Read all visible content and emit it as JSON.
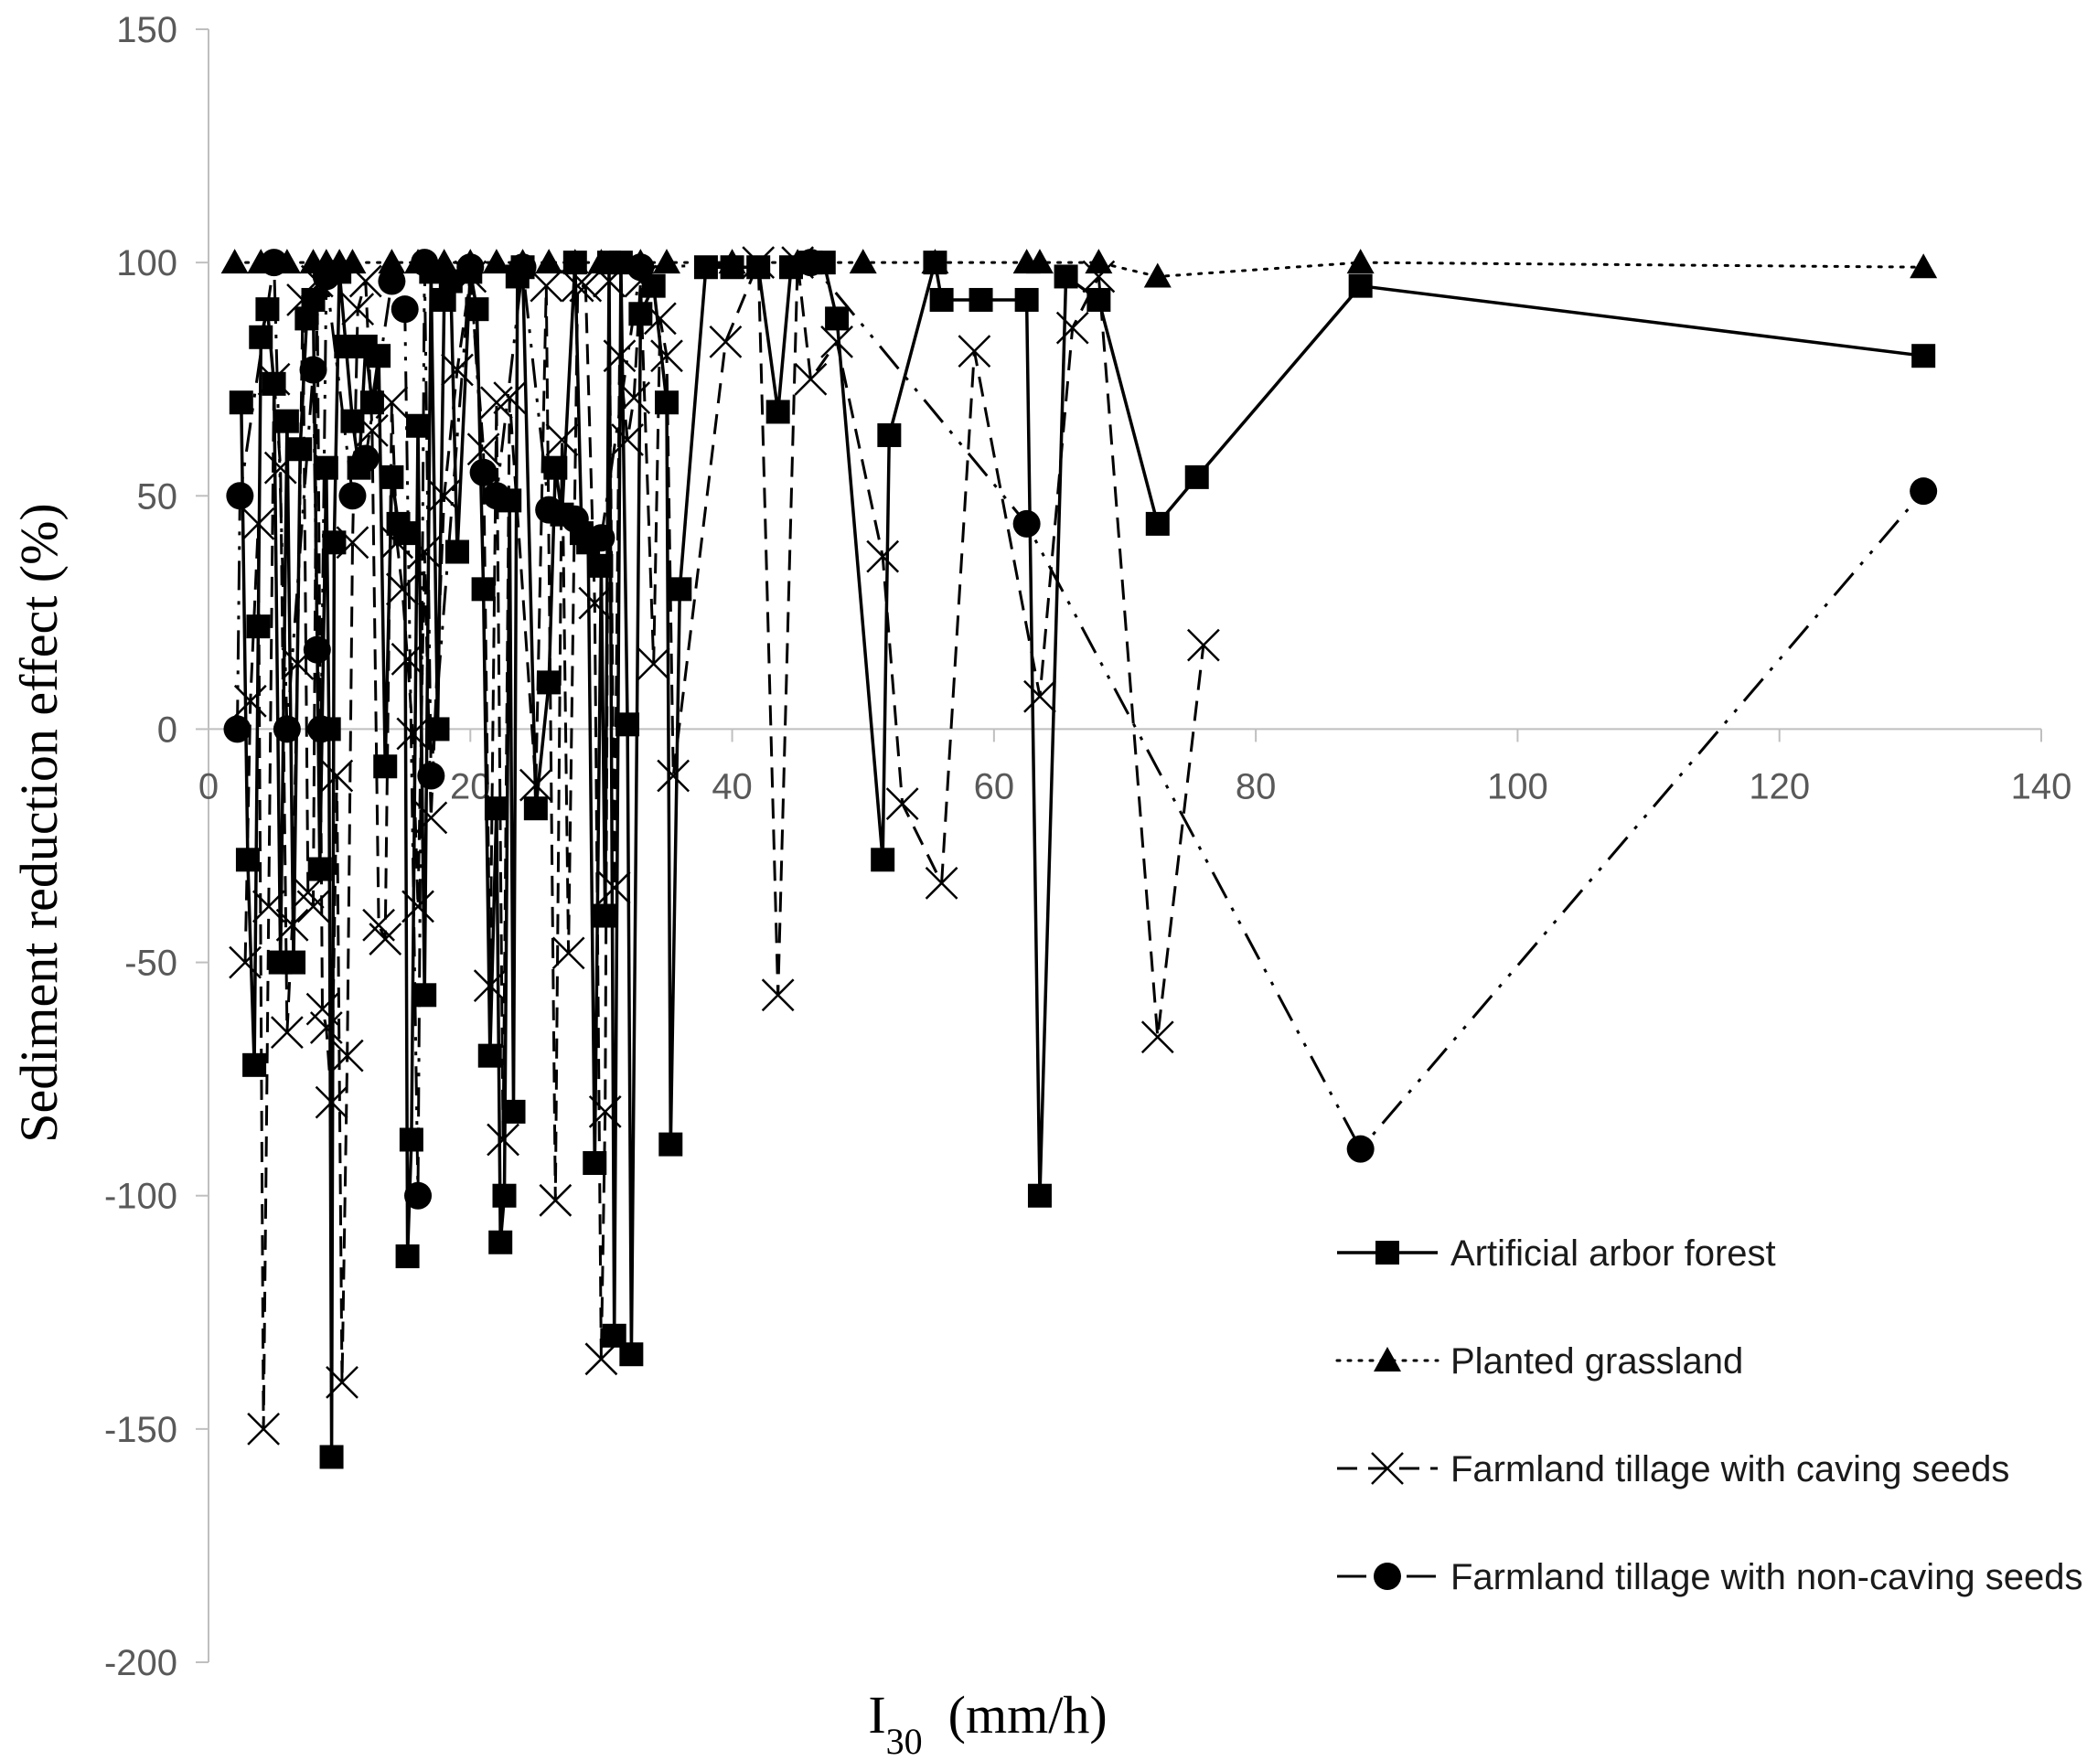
{
  "chart_data": {
    "type": "line",
    "xlabel": "I30",
    "xlabel_main": "I",
    "xlabel_sub": "30",
    "xlabel_unit": "(mm/h)",
    "ylabel": "Sediment reduction effect (%)",
    "xlim": [
      0,
      140
    ],
    "ylim": [
      -200,
      150
    ],
    "xticks": [
      0,
      20,
      40,
      60,
      80,
      100,
      120,
      140
    ],
    "yticks": [
      150,
      100,
      50,
      0,
      -50,
      -100,
      -150,
      -200
    ],
    "grid": false,
    "legend": "bottom-right",
    "series": [
      {
        "name": "Artificial arbor forest",
        "marker": "square",
        "dash": "solid",
        "points": [
          [
            2.5,
            70
          ],
          [
            3,
            -28
          ],
          [
            3.5,
            -72
          ],
          [
            3.8,
            22
          ],
          [
            4,
            84
          ],
          [
            4.5,
            90
          ],
          [
            5,
            74
          ],
          [
            5.5,
            -50
          ],
          [
            6,
            66
          ],
          [
            6.5,
            -50
          ],
          [
            7,
            60
          ],
          [
            7.5,
            88
          ],
          [
            8,
            92
          ],
          [
            8.5,
            -30
          ],
          [
            9,
            56
          ],
          [
            9.2,
            0
          ],
          [
            9.4,
            -156
          ],
          [
            9.6,
            40
          ],
          [
            10,
            98
          ],
          [
            10.5,
            82
          ],
          [
            11,
            66
          ],
          [
            11.5,
            56
          ],
          [
            12,
            82
          ],
          [
            12.5,
            70
          ],
          [
            13,
            80
          ],
          [
            13.5,
            -8
          ],
          [
            14,
            54
          ],
          [
            14.5,
            44
          ],
          [
            15,
            42
          ],
          [
            15.2,
            -113
          ],
          [
            15.5,
            -88
          ],
          [
            16,
            65
          ],
          [
            16.5,
            -57
          ],
          [
            17,
            98
          ],
          [
            17.5,
            0
          ],
          [
            18,
            92
          ],
          [
            18.5,
            96
          ],
          [
            19,
            38
          ],
          [
            20,
            98
          ],
          [
            20.5,
            90
          ],
          [
            21,
            30
          ],
          [
            21.5,
            -70
          ],
          [
            22,
            -17
          ],
          [
            22.3,
            -110
          ],
          [
            22.6,
            -100
          ],
          [
            23,
            49
          ],
          [
            23.3,
            -82
          ],
          [
            23.6,
            97
          ],
          [
            24,
            99
          ],
          [
            25,
            -17
          ],
          [
            26,
            10
          ],
          [
            26.5,
            56
          ],
          [
            27,
            46
          ],
          [
            28,
            100
          ],
          [
            28.5,
            42
          ],
          [
            29,
            40
          ],
          [
            29.5,
            -93
          ],
          [
            30,
            35
          ],
          [
            30.3,
            -40
          ],
          [
            30.6,
            100
          ],
          [
            31,
            -130
          ],
          [
            31.5,
            100
          ],
          [
            32,
            1
          ],
          [
            32.3,
            -134
          ],
          [
            33,
            89
          ],
          [
            34,
            95
          ],
          [
            35,
            70
          ],
          [
            35.3,
            -89
          ],
          [
            36,
            30
          ],
          [
            38,
            99
          ],
          [
            40,
            99
          ],
          [
            42,
            99
          ],
          [
            43.5,
            68
          ],
          [
            44.5,
            99
          ],
          [
            46,
            100
          ],
          [
            47,
            100
          ],
          [
            48,
            88
          ],
          [
            51.5,
            -28
          ],
          [
            52,
            63
          ],
          [
            55.5,
            100
          ],
          [
            56,
            92
          ],
          [
            59,
            92
          ],
          [
            62.5,
            92
          ],
          [
            63.5,
            -100
          ],
          [
            65.5,
            97
          ],
          [
            68,
            92
          ],
          [
            72.5,
            44
          ],
          [
            75.5,
            54
          ],
          [
            88,
            95
          ],
          [
            131,
            80
          ]
        ]
      },
      {
        "name": "Planted grassland",
        "marker": "triangle",
        "dash": "dotted",
        "points": [
          [
            2,
            100
          ],
          [
            4,
            100
          ],
          [
            6,
            100
          ],
          [
            8,
            100
          ],
          [
            9,
            100
          ],
          [
            10,
            100
          ],
          [
            11,
            100
          ],
          [
            14,
            100
          ],
          [
            16,
            100
          ],
          [
            18,
            100
          ],
          [
            20,
            100
          ],
          [
            22,
            100
          ],
          [
            24,
            100
          ],
          [
            26,
            100
          ],
          [
            28,
            100
          ],
          [
            30,
            100
          ],
          [
            33,
            100
          ],
          [
            35,
            100
          ],
          [
            40,
            100
          ],
          [
            45,
            100
          ],
          [
            50,
            100
          ],
          [
            55.5,
            100
          ],
          [
            62.5,
            100
          ],
          [
            63.5,
            100
          ],
          [
            68,
            100
          ],
          [
            72.5,
            97
          ],
          [
            88,
            100
          ],
          [
            131,
            99
          ]
        ]
      },
      {
        "name": "Farmland tillage with caving seeds",
        "marker": "x",
        "dash": "dashed",
        "points": [
          [
            2.8,
            -50
          ],
          [
            3.2,
            6
          ],
          [
            3.8,
            44
          ],
          [
            4.2,
            -150
          ],
          [
            4.6,
            -38
          ],
          [
            5,
            75
          ],
          [
            5.5,
            56
          ],
          [
            6,
            -65
          ],
          [
            6.4,
            -42
          ],
          [
            6.8,
            14
          ],
          [
            7.2,
            92
          ],
          [
            7.6,
            -35
          ],
          [
            8,
            -38
          ],
          [
            8.3,
            96
          ],
          [
            8.7,
            -60
          ],
          [
            9,
            -64
          ],
          [
            9.4,
            -80
          ],
          [
            9.8,
            -10
          ],
          [
            10.2,
            -140
          ],
          [
            10.6,
            -70
          ],
          [
            11,
            40
          ],
          [
            11.4,
            90
          ],
          [
            12,
            96
          ],
          [
            12.5,
            64
          ],
          [
            13,
            -42
          ],
          [
            13.5,
            -45
          ],
          [
            14,
            70
          ],
          [
            14.4,
            40
          ],
          [
            14.8,
            30
          ],
          [
            15.2,
            15
          ],
          [
            15.6,
            -1
          ],
          [
            16,
            -38
          ],
          [
            16.5,
            38
          ],
          [
            17,
            -19
          ],
          [
            18,
            50
          ],
          [
            19,
            77
          ],
          [
            20,
            97
          ],
          [
            21,
            60
          ],
          [
            21.5,
            -55
          ],
          [
            22,
            70
          ],
          [
            22.5,
            -88
          ],
          [
            23,
            71
          ],
          [
            25,
            -12
          ],
          [
            25.8,
            95
          ],
          [
            26.5,
            -101
          ],
          [
            27,
            62
          ],
          [
            27.5,
            -48
          ],
          [
            28.2,
            95
          ],
          [
            28.8,
            95
          ],
          [
            29.5,
            27
          ],
          [
            30,
            -135
          ],
          [
            30.3,
            -82
          ],
          [
            30.6,
            96
          ],
          [
            31,
            -34
          ],
          [
            31.4,
            80
          ],
          [
            32,
            62
          ],
          [
            32.5,
            71
          ],
          [
            33,
            96
          ],
          [
            34,
            14
          ],
          [
            34.5,
            88
          ],
          [
            35,
            80
          ],
          [
            35.5,
            -10
          ],
          [
            39.5,
            83
          ],
          [
            42,
            100
          ],
          [
            43.5,
            -57
          ],
          [
            45,
            100
          ],
          [
            46,
            75
          ],
          [
            48,
            83
          ],
          [
            51.5,
            37
          ],
          [
            53,
            -16
          ],
          [
            56,
            -33
          ],
          [
            58.5,
            81
          ],
          [
            63.5,
            7
          ],
          [
            66,
            86
          ],
          [
            68,
            97
          ],
          [
            72.5,
            -66
          ],
          [
            76,
            18
          ]
        ]
      },
      {
        "name": "Farmland tillage with non-caving seeds",
        "marker": "circle",
        "dash": "dash-dot-dot",
        "points": [
          [
            2.2,
            0
          ],
          [
            2.4,
            50
          ],
          [
            5,
            100
          ],
          [
            6,
            0
          ],
          [
            8,
            77
          ],
          [
            8.3,
            17
          ],
          [
            8.6,
            0
          ],
          [
            9,
            97
          ],
          [
            11,
            50
          ],
          [
            12,
            58
          ],
          [
            14,
            96
          ],
          [
            15,
            90
          ],
          [
            16,
            -100
          ],
          [
            16.5,
            100
          ],
          [
            17,
            -10
          ],
          [
            20,
            99
          ],
          [
            21,
            55
          ],
          [
            22,
            50
          ],
          [
            24,
            99
          ],
          [
            26,
            47
          ],
          [
            28,
            45
          ],
          [
            30,
            41
          ],
          [
            33,
            99
          ],
          [
            46,
            100
          ],
          [
            62.5,
            44
          ],
          [
            88,
            -90
          ],
          [
            131,
            51
          ]
        ]
      }
    ]
  }
}
